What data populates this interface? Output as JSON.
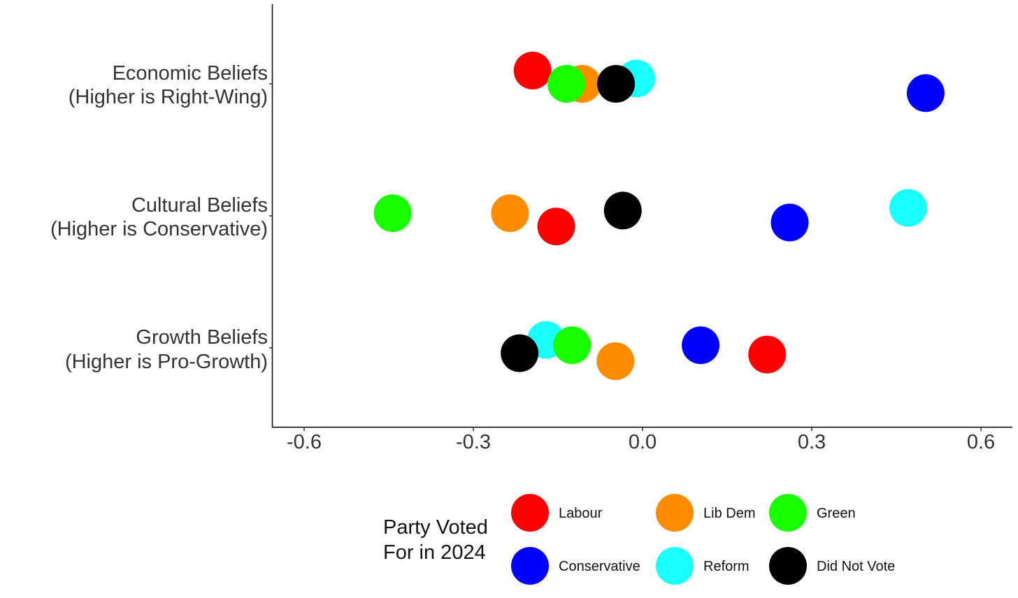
{
  "chart_data": {
    "type": "scatter",
    "title": "",
    "xlabel": "",
    "ylabel": "",
    "xlim": [
      -0.66,
      0.66
    ],
    "x_ticks": [
      -0.6,
      -0.3,
      0.0,
      0.3,
      0.6
    ],
    "x_tick_labels": [
      "-0.6",
      "-0.3",
      "0.0",
      "0.3",
      "0.6"
    ],
    "grid": false,
    "categories": [
      {
        "key": "economic",
        "line1": "Economic Beliefs",
        "line2": "(Higher is Right-Wing)"
      },
      {
        "key": "cultural",
        "line1": "Cultural Beliefs",
        "line2": "(Higher is Conservative)"
      },
      {
        "key": "growth",
        "line1": "Growth Beliefs",
        "line2": "(Higher is Pro-Growth)"
      }
    ],
    "legend": {
      "title_line1": "Party Voted",
      "title_line2": "For in 2024",
      "placement": "bottom"
    },
    "series": [
      {
        "name": "Labour",
        "color": "#ff0000",
        "values": {
          "economic": -0.195,
          "cultural": -0.153,
          "growth": 0.221
        },
        "jitter": {
          "economic": -0.1,
          "cultural": 0.08,
          "growth": 0.05
        }
      },
      {
        "name": "Lib Dem",
        "color": "#ff8c00",
        "values": {
          "economic": -0.107,
          "cultural": -0.235,
          "growth": -0.048
        },
        "jitter": {
          "economic": 0.0,
          "cultural": -0.02,
          "growth": 0.1
        }
      },
      {
        "name": "Green",
        "color": "#1aff00",
        "values": {
          "economic": -0.135,
          "cultural": -0.443,
          "growth": -0.125
        },
        "jitter": {
          "economic": 0.0,
          "cultural": -0.02,
          "growth": -0.02
        }
      },
      {
        "name": "Conservative",
        "color": "#0000ff",
        "values": {
          "economic": 0.502,
          "cultural": 0.261,
          "growth": 0.103
        },
        "jitter": {
          "economic": 0.07,
          "cultural": 0.05,
          "growth": -0.02
        }
      },
      {
        "name": "Reform",
        "color": "#1affff",
        "values": {
          "economic": -0.011,
          "cultural": 0.471,
          "growth": -0.171
        },
        "jitter": {
          "economic": -0.04,
          "cultural": -0.06,
          "growth": -0.06
        }
      },
      {
        "name": "Did Not Vote",
        "color": "#000000",
        "values": {
          "economic": -0.047,
          "cultural": -0.035,
          "growth": -0.218
        },
        "jitter": {
          "economic": 0.0,
          "cultural": -0.04,
          "growth": 0.04
        }
      }
    ]
  }
}
